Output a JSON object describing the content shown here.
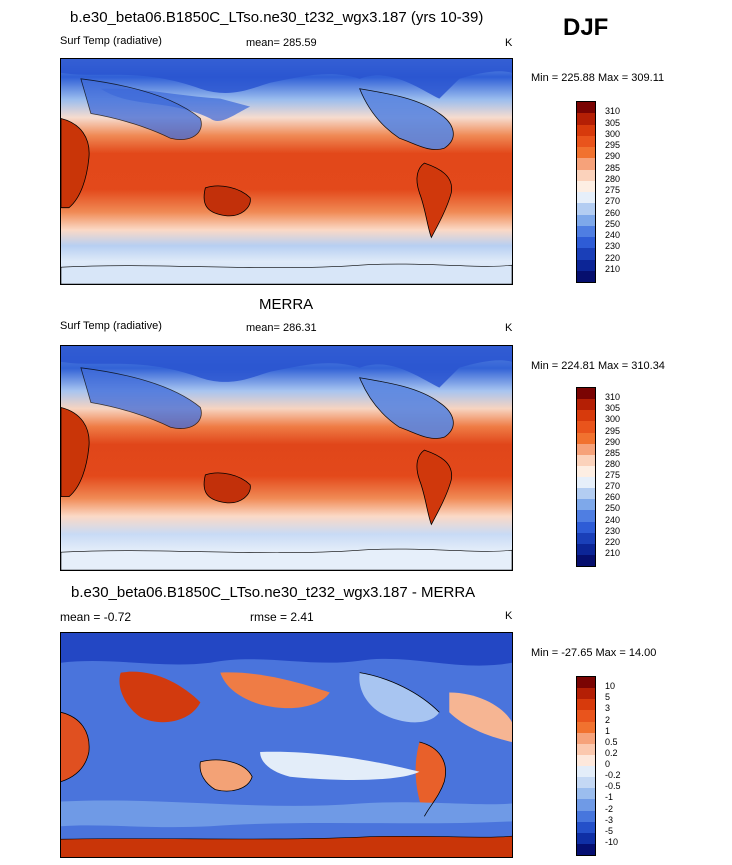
{
  "season": "DJF",
  "panels": [
    {
      "title": "b.e30_beta06.B1850C_LTso.ne30_t232_wgx3.187 (yrs 10-39)",
      "left_label": "Surf Temp (radiative)",
      "mean_label": "mean= 285.59",
      "extra_label": "",
      "units": "K",
      "minmax": "Min = 225.88 Max = 309.11",
      "colorbar_labels": [
        "310",
        "305",
        "300",
        "295",
        "290",
        "285",
        "280",
        "275",
        "270",
        "260",
        "250",
        "240",
        "230",
        "220",
        "210"
      ],
      "colorbar_colors": [
        "#7a0403",
        "#b41f05",
        "#d73a0c",
        "#e9541c",
        "#f1722f",
        "#f6a27a",
        "#fbd2bb",
        "#fdeee3",
        "#e6effa",
        "#b3cdf2",
        "#7ea8ea",
        "#4f7ee2",
        "#2e5cd6",
        "#1a3fb8",
        "#0c2596",
        "#060f6e"
      ]
    },
    {
      "title": "MERRA",
      "left_label": "Surf Temp (radiative)",
      "mean_label": "mean= 286.31",
      "extra_label": "",
      "units": "K",
      "minmax": "Min = 224.81 Max = 310.34",
      "colorbar_labels": [
        "310",
        "305",
        "300",
        "295",
        "290",
        "285",
        "280",
        "275",
        "270",
        "260",
        "250",
        "240",
        "230",
        "220",
        "210"
      ],
      "colorbar_colors": [
        "#7a0403",
        "#b41f05",
        "#d73a0c",
        "#e9541c",
        "#f1722f",
        "#f6a27a",
        "#fbd2bb",
        "#fdeee3",
        "#e6effa",
        "#b3cdf2",
        "#7ea8ea",
        "#4f7ee2",
        "#2e5cd6",
        "#1a3fb8",
        "#0c2596",
        "#060f6e"
      ]
    },
    {
      "title": "b.e30_beta06.B1850C_LTso.ne30_t232_wgx3.187 - MERRA",
      "left_label": "mean = -0.72",
      "mean_label": "rmse = 2.41",
      "extra_label": "",
      "units": "K",
      "minmax": "Min = -27.65 Max = 14.00",
      "colorbar_labels": [
        "10",
        "5",
        "3",
        "2",
        "1",
        "0.5",
        "0.2",
        "0",
        "-0.2",
        "-0.5",
        "-1",
        "-2",
        "-3",
        "-5",
        "-10"
      ],
      "colorbar_colors": [
        "#7a0403",
        "#b41f05",
        "#d73a0c",
        "#e9541c",
        "#f1722f",
        "#f6a27a",
        "#fbc8ae",
        "#fde8dc",
        "#e3edf9",
        "#c4d8f4",
        "#9bbdee",
        "#6f9ae6",
        "#4776dd",
        "#2450c9",
        "#0f2fa5",
        "#050f72"
      ]
    }
  ]
}
